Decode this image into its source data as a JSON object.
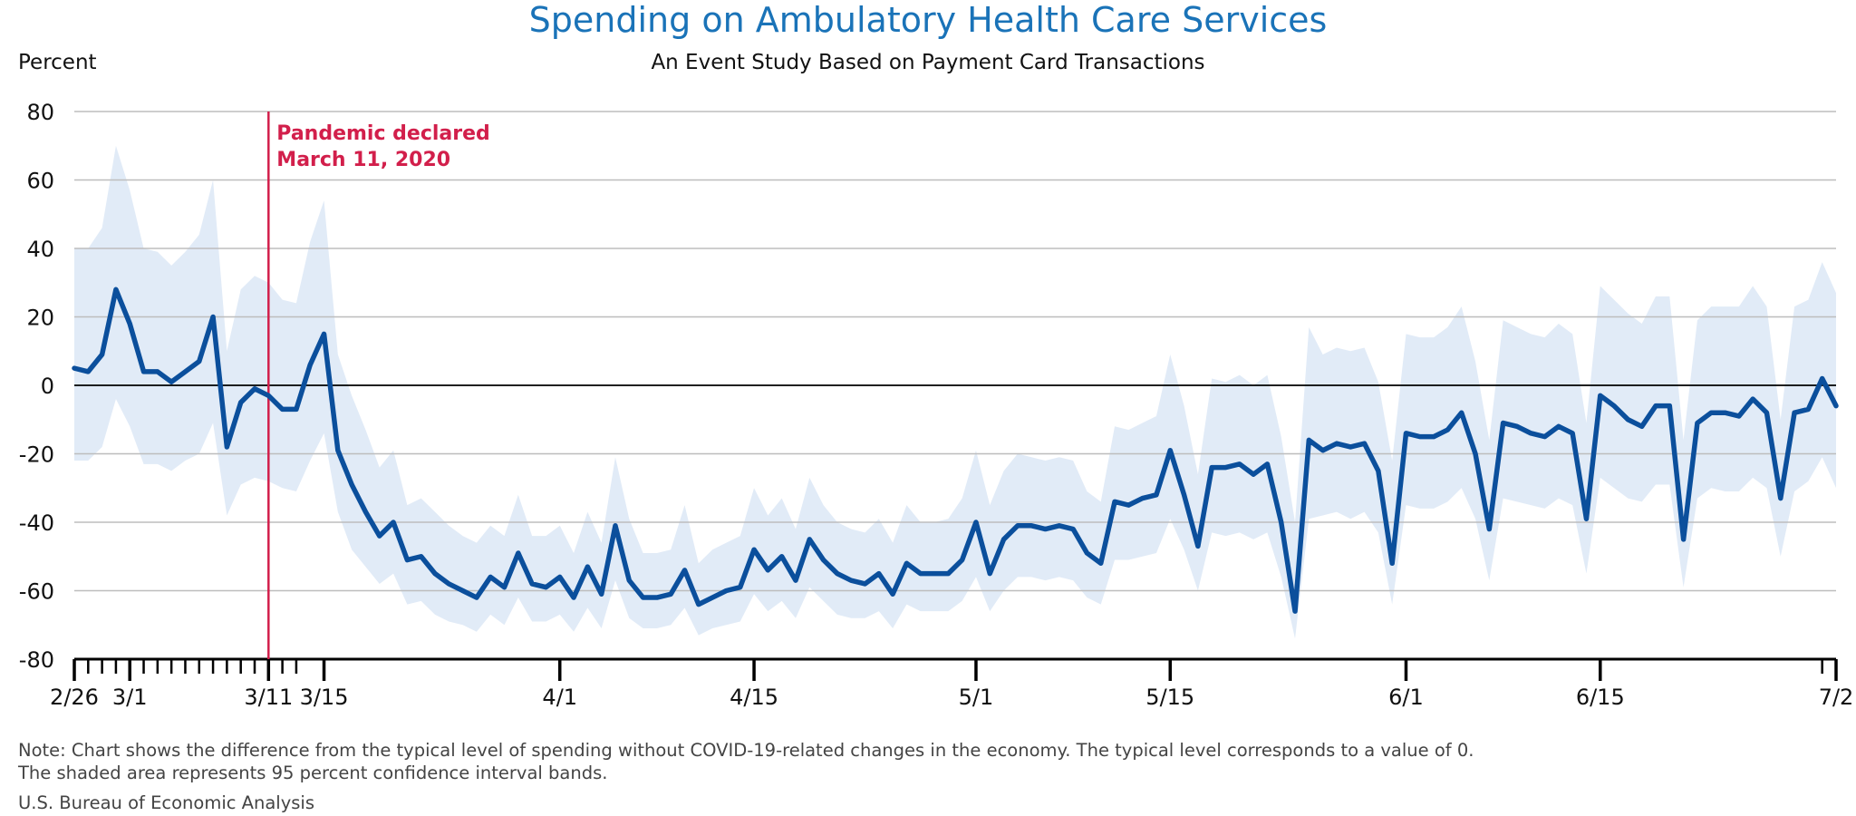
{
  "title": "Spending on Ambulatory Health Care Services",
  "subtitle": "An Event Study Based on Payment Card Transactions",
  "note_lines": [
    "Note: Chart shows the difference from the typical level of spending without COVID-19-related changes in the economy. The typical level corresponds to a value of 0.",
    "The shaded area represents 95 percent confidence interval bands."
  ],
  "source": "U.S. Bureau of Economic Analysis",
  "colors": {
    "title": "#1a73b8",
    "line": "#0b4f9c",
    "band": "#e1ebf7",
    "event": "#d21f4b",
    "grid": "#bdbdbd"
  },
  "chart_data": {
    "type": "line",
    "title": "Spending on Ambulatory Health Care Services",
    "subtitle": "An Event Study Based on Payment Card Transactions",
    "ylabel": "Percent",
    "xlabel": "",
    "ylim": [
      -80,
      80
    ],
    "yticks": [
      80,
      60,
      40,
      20,
      0,
      -20,
      -40,
      -60,
      -80
    ],
    "x_start": "2020-02-26",
    "x_end": "2020-07-02",
    "x_tick_labels": [
      {
        "date": "2020-02-26",
        "label": "2/26"
      },
      {
        "date": "2020-03-01",
        "label": "3/1"
      },
      {
        "date": "2020-03-11",
        "label": "3/11"
      },
      {
        "date": "2020-03-15",
        "label": "3/15"
      },
      {
        "date": "2020-04-01",
        "label": "4/1"
      },
      {
        "date": "2020-04-15",
        "label": "4/15"
      },
      {
        "date": "2020-05-01",
        "label": "5/1"
      },
      {
        "date": "2020-05-15",
        "label": "5/15"
      },
      {
        "date": "2020-06-01",
        "label": "6/1"
      },
      {
        "date": "2020-06-15",
        "label": "6/15"
      },
      {
        "date": "2020-07-02",
        "label": "7/2"
      }
    ],
    "grid": true,
    "event": {
      "date": "2020-03-11",
      "label_lines": [
        "Pandemic declared",
        "March 11, 2020"
      ]
    },
    "series": [
      {
        "values": [
          5,
          4,
          9,
          28,
          18,
          4,
          4,
          1,
          4,
          7,
          20,
          -18,
          -5,
          -1,
          -3,
          -7,
          -7,
          6,
          15,
          -19,
          -29,
          -37,
          -44,
          -40,
          -51,
          -50,
          -55,
          -58,
          -60,
          -62,
          -56,
          -59,
          -49,
          -58,
          -59,
          -56,
          -62,
          -53,
          -61,
          -41,
          -57,
          -62,
          -62,
          -61,
          -54,
          -64,
          -62,
          -60,
          -59,
          -48,
          -54,
          -50,
          -57,
          -45,
          -51,
          -55,
          -57,
          -58,
          -55,
          -61,
          -52,
          -55,
          -55,
          -55,
          -51,
          -40,
          -55,
          -45,
          -41,
          -41,
          -42,
          -41,
          -42,
          -49,
          -52,
          -34,
          -35,
          -33,
          -32,
          -19,
          -32,
          -47,
          -24,
          -24,
          -23,
          -26,
          -23,
          -40,
          -66,
          -16,
          -19,
          -17,
          -18,
          -17,
          -25,
          -52,
          -14,
          -15,
          -15,
          -13,
          -8,
          -20,
          -42,
          -11,
          -12,
          -14,
          -15,
          -12,
          -14,
          -39,
          -3,
          -6,
          -10,
          -12,
          -6,
          -6,
          -45,
          -11,
          -8,
          -8,
          -9,
          -4,
          -8,
          -33,
          -8,
          -7,
          2,
          -6
        ]
      },
      {
        "name": "95 percent confidence interval (upper)",
        "values": [
          40,
          40,
          46,
          70,
          57,
          40,
          39,
          35,
          39,
          44,
          60,
          10,
          28,
          32,
          30,
          25,
          24,
          42,
          54,
          9,
          -3,
          -13,
          -24,
          -19,
          -35,
          -33,
          -37,
          -41,
          -44,
          -46,
          -41,
          -44,
          -32,
          -44,
          -44,
          -41,
          -49,
          -37,
          -46,
          -21,
          -39,
          -49,
          -49,
          -48,
          -35,
          -52,
          -48,
          -46,
          -44,
          -30,
          -38,
          -33,
          -42,
          -27,
          -35,
          -40,
          -42,
          -43,
          -39,
          -46,
          -35,
          -40,
          -40,
          -39,
          -33,
          -19,
          -35,
          -25,
          -20,
          -21,
          -22,
          -21,
          -22,
          -31,
          -34,
          -12,
          -13,
          -11,
          -9,
          9,
          -6,
          -26,
          2,
          1,
          3,
          0,
          3,
          -15,
          -40,
          17,
          9,
          11,
          10,
          11,
          1,
          -22,
          15,
          14,
          14,
          17,
          23,
          7,
          -16,
          19,
          17,
          15,
          14,
          18,
          15,
          -11,
          29,
          25,
          21,
          18,
          26,
          26,
          -16,
          19,
          23,
          23,
          23,
          29,
          23,
          -10,
          23,
          25,
          36,
          27
        ]
      },
      {
        "name": "95 percent confidence interval (lower)",
        "values": [
          -22,
          -22,
          -18,
          -4,
          -12,
          -23,
          -23,
          -25,
          -22,
          -20,
          -11,
          -38,
          -29,
          -27,
          -28,
          -30,
          -31,
          -22,
          -14,
          -37,
          -48,
          -53,
          -58,
          -55,
          -64,
          -63,
          -67,
          -69,
          -70,
          -72,
          -67,
          -70,
          -62,
          -69,
          -69,
          -67,
          -72,
          -65,
          -71,
          -57,
          -68,
          -71,
          -71,
          -70,
          -65,
          -73,
          -71,
          -70,
          -69,
          -61,
          -66,
          -63,
          -68,
          -59,
          -63,
          -67,
          -68,
          -68,
          -66,
          -71,
          -64,
          -66,
          -66,
          -66,
          -63,
          -56,
          -66,
          -60,
          -56,
          -56,
          -57,
          -56,
          -57,
          -62,
          -64,
          -51,
          -51,
          -50,
          -49,
          -39,
          -48,
          -60,
          -43,
          -44,
          -43,
          -45,
          -43,
          -56,
          -74,
          -39,
          -38,
          -37,
          -39,
          -37,
          -43,
          -64,
          -35,
          -36,
          -36,
          -34,
          -30,
          -39,
          -57,
          -33,
          -34,
          -35,
          -36,
          -33,
          -35,
          -55,
          -27,
          -30,
          -33,
          -34,
          -29,
          -29,
          -59,
          -33,
          -30,
          -31,
          -31,
          -27,
          -30,
          -50,
          -31,
          -28,
          -21,
          -30
        ]
      }
    ]
  }
}
